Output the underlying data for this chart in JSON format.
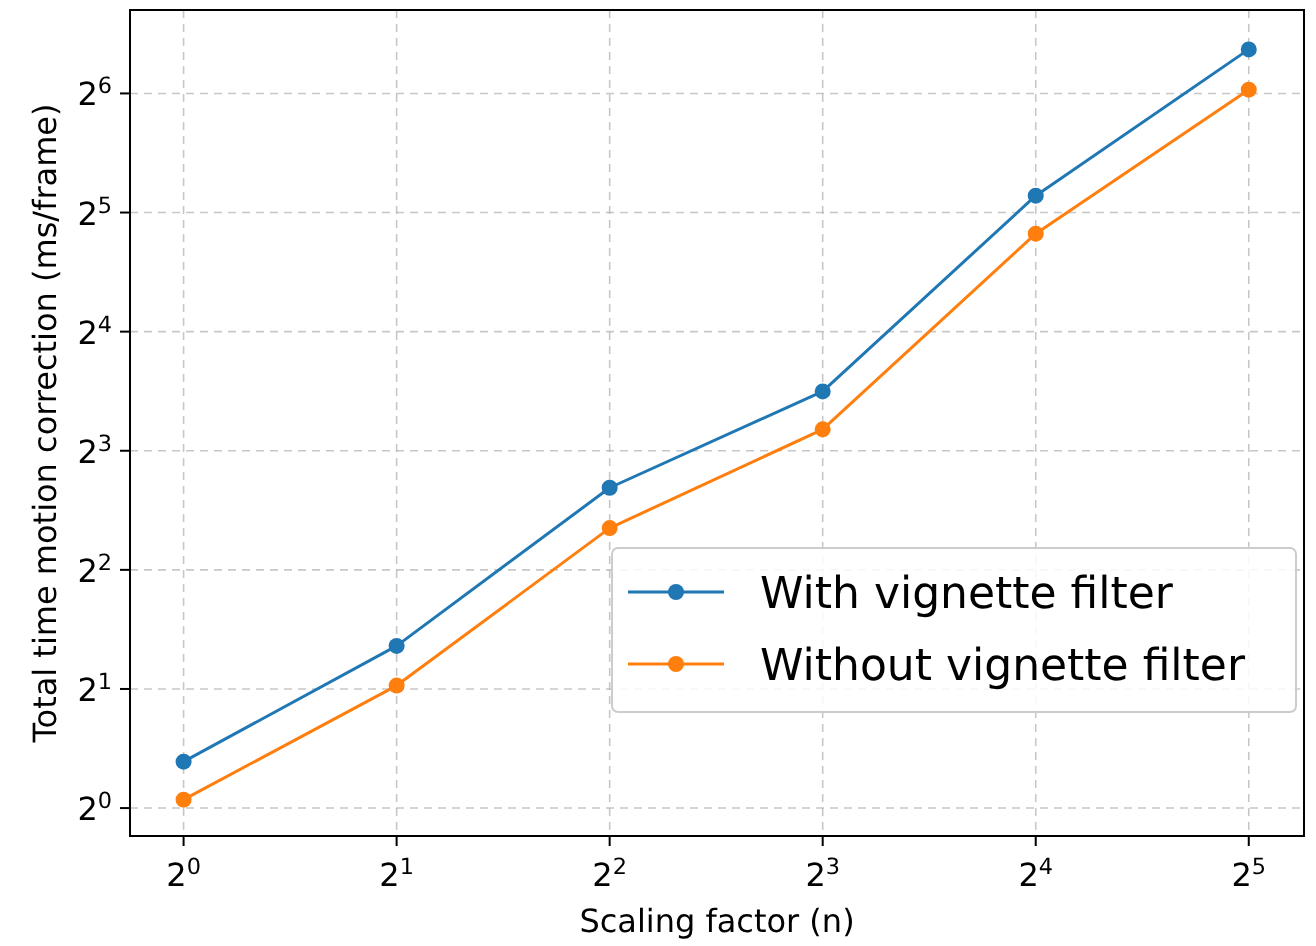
{
  "chart_data": {
    "type": "line",
    "xlabel": "Scaling factor (n)",
    "ylabel": "Total time motion correction (ms/frame)",
    "log": "xy",
    "grid": true,
    "legend": "bottom right",
    "marker": "circle",
    "line_style": "solid",
    "x": [
      1,
      2,
      4,
      8,
      16,
      32
    ],
    "xlim": [
      0.84,
      38.3
    ],
    "ylim": [
      0.85,
      104
    ],
    "xticks": [
      {
        "value": 1,
        "label": "2$^{0}$"
      },
      {
        "value": 2,
        "label": "2$^{1}$"
      },
      {
        "value": 4,
        "label": "2$^{2}$"
      },
      {
        "value": 8,
        "label": "2$^{3}$"
      },
      {
        "value": 16,
        "label": "2$^{4}$"
      },
      {
        "value": 32,
        "label": "2$^{5}$"
      }
    ],
    "yticks": [
      {
        "value": 1,
        "label": "2$^{0}$"
      },
      {
        "value": 2,
        "label": "2$^{1}$"
      },
      {
        "value": 4,
        "label": "2$^{2}$"
      },
      {
        "value": 8,
        "label": "2$^{3}$"
      },
      {
        "value": 16,
        "label": "2$^{4}$"
      },
      {
        "value": 32,
        "label": "2$^{5}$"
      },
      {
        "value": 64,
        "label": "2$^{6}$"
      }
    ],
    "series": [
      {
        "name": "With vignette filter",
        "color": "#1f77b4",
        "values": [
          1.31,
          2.57,
          6.45,
          11.3,
          35.3,
          82.7
        ]
      },
      {
        "name": "Without vignette filter",
        "color": "#ff7f0e",
        "values": [
          1.05,
          2.04,
          5.1,
          9.06,
          28.3,
          65.4
        ]
      }
    ]
  }
}
